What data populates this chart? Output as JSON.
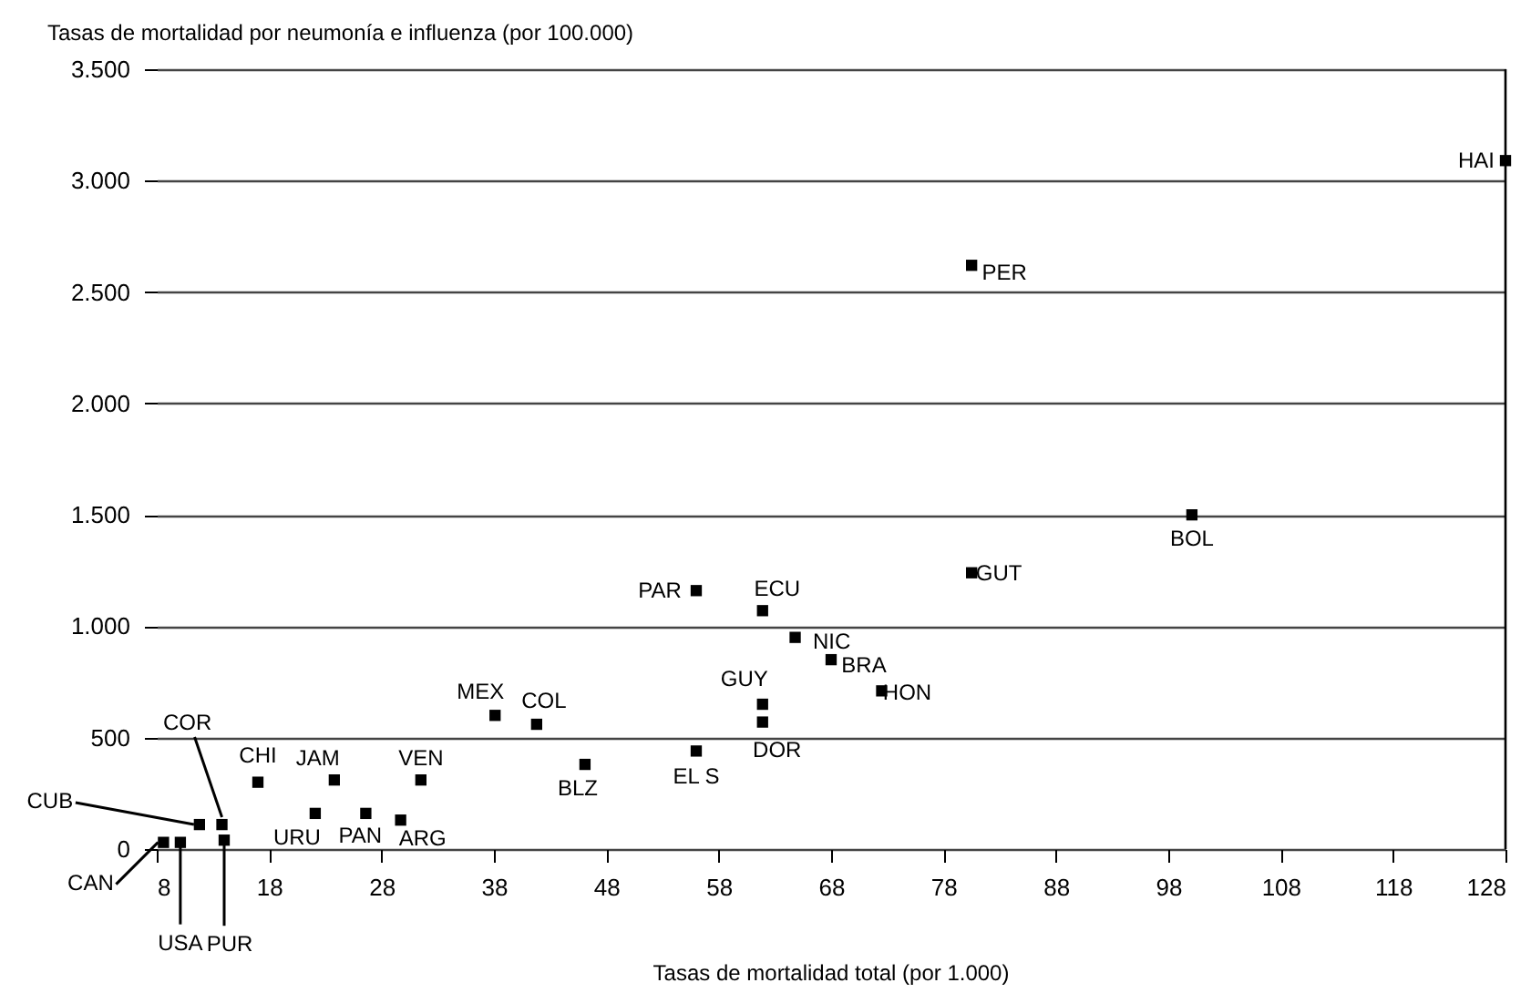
{
  "chart_data": {
    "type": "scatter",
    "xlabel": "Tasas de mortalidad total (por 1.000)",
    "ylabel": "Tasas de mortalidad por neumonía e influenza (por 100.000)",
    "x": [
      8.6,
      10.1,
      11.8,
      13.8,
      14,
      17,
      22.1,
      23.8,
      26.6,
      29.7,
      31.5,
      38.1,
      41.8,
      46.1,
      56,
      56,
      61.9,
      61.9,
      61.9,
      64.8,
      68,
      72.5,
      80.5,
      80.5,
      100.1,
      128
    ],
    "series": [
      {
        "color": "#000000",
        "values": [
          30,
          30,
          110,
          110,
          40,
          300,
          160,
          310,
          160,
          130,
          310,
          600,
          560,
          380,
          440,
          1160,
          1070,
          650,
          570,
          950,
          850,
          710,
          1240,
          2620,
          1500,
          3090
        ]
      }
    ],
    "annotations": [
      {
        "text": "CAN",
        "x": 8.6,
        "y": 30
      },
      {
        "text": "USA",
        "x": 10.1,
        "y": 30
      },
      {
        "text": "CUB",
        "x": 11.8,
        "y": 110
      },
      {
        "text": "COR",
        "x": 13.8,
        "y": 110
      },
      {
        "text": "PUR",
        "x": 14,
        "y": 40
      },
      {
        "text": "CHI",
        "x": 17,
        "y": 300
      },
      {
        "text": "URU",
        "x": 22.1,
        "y": 160
      },
      {
        "text": "JAM",
        "x": 23.8,
        "y": 310
      },
      {
        "text": "PAN",
        "x": 26.6,
        "y": 160
      },
      {
        "text": "ARG",
        "x": 29.7,
        "y": 130
      },
      {
        "text": "VEN",
        "x": 31.5,
        "y": 310
      },
      {
        "text": "MEX",
        "x": 38.1,
        "y": 600
      },
      {
        "text": "COL",
        "x": 41.8,
        "y": 560
      },
      {
        "text": "BLZ",
        "x": 46.1,
        "y": 380
      },
      {
        "text": "EL S",
        "x": 56,
        "y": 440
      },
      {
        "text": "PAR",
        "x": 56,
        "y": 1160
      },
      {
        "text": "ECU",
        "x": 61.9,
        "y": 1070
      },
      {
        "text": "GUY",
        "x": 61.9,
        "y": 650
      },
      {
        "text": "DOR",
        "x": 61.9,
        "y": 570
      },
      {
        "text": "NIC",
        "x": 64.8,
        "y": 950
      },
      {
        "text": "BRA",
        "x": 68,
        "y": 850
      },
      {
        "text": "HON",
        "x": 72.5,
        "y": 710
      },
      {
        "text": "GUT",
        "x": 80.5,
        "y": 1240
      },
      {
        "text": "PER",
        "x": 80.5,
        "y": 2620
      },
      {
        "text": "BOL",
        "x": 100.1,
        "y": 1500
      },
      {
        "text": "HAI",
        "x": 128,
        "y": 3090
      }
    ],
    "xlim": [
      8,
      128
    ],
    "xticks": [
      8,
      18,
      28,
      38,
      48,
      58,
      68,
      78,
      88,
      98,
      108,
      118,
      128
    ],
    "ylim": [
      0,
      3500
    ],
    "yticks": [
      {
        "value": 0,
        "label": "0"
      },
      {
        "value": 500,
        "label": "500"
      },
      {
        "value": 1000,
        "label": "1.000"
      },
      {
        "value": 1500,
        "label": "1.500"
      },
      {
        "value": 2000,
        "label": "2.000"
      },
      {
        "value": 2500,
        "label": "2.500"
      },
      {
        "value": 3000,
        "label": "3.000"
      },
      {
        "value": 3500,
        "label": "3.500"
      }
    ],
    "grid": "y",
    "marker": "square"
  }
}
